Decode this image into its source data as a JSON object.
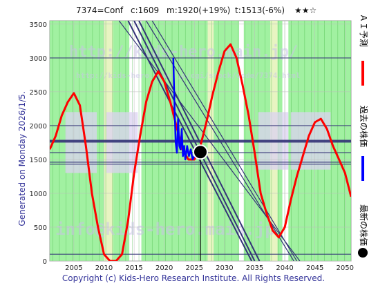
{
  "header": {
    "code": "7374=Conf",
    "current": "c:1609",
    "max": "m:1920(+19%)",
    "target": "t:1513(-6%)",
    "rating": "★★☆"
  },
  "generated_text": "Generated on Monday 2026/1/5.",
  "legend": {
    "prediction": "ＡＩ予測",
    "past_price": "過去の株価",
    "latest_price": "最新の株価"
  },
  "watermarks": {
    "main": "http://kids-hero.main.jp/",
    "sub": "http://kids-hero.main.jp/cgi/stock/code/7374.html",
    "mail": "info@kids-hero.main.jp"
  },
  "copyright": "Copyright (c) Kids-Hero Research Institute. All Rights Reserved.",
  "colors": {
    "prediction": "#ff0000",
    "past_price": "#0000ff",
    "latest_marker": "#000000",
    "green_band": "#90ee90",
    "purple_band": "#dcd2f2",
    "trend_line": "#333377",
    "legend_text": "#333399"
  },
  "chart_data": {
    "type": "line",
    "xlim": [
      2001,
      2051
    ],
    "ylim": [
      0,
      3550
    ],
    "x_ticks": [
      2005,
      2010,
      2015,
      2020,
      2025,
      2030,
      2035,
      2040,
      2045,
      2050
    ],
    "y_ticks": [
      0,
      500,
      1000,
      1500,
      2000,
      2500,
      3000,
      3500
    ],
    "series": [
      {
        "name": "ＡＩ予測",
        "color": "#ff0000",
        "x": [
          2001,
          2002,
          2003,
          2004,
          2005,
          2006,
          2007,
          2008,
          2009,
          2010,
          2011,
          2012,
          2013,
          2014,
          2015,
          2016,
          2017,
          2018,
          2019,
          2020,
          2021,
          2022,
          2023,
          2024,
          2025,
          2026,
          2027,
          2028,
          2029,
          2030,
          2031,
          2032,
          2033,
          2034,
          2035,
          2036,
          2037,
          2038,
          2039,
          2040,
          2041,
          2042,
          2043,
          2044,
          2045,
          2046,
          2047,
          2048,
          2049,
          2050,
          2051
        ],
        "values": [
          1650,
          1850,
          2150,
          2350,
          2480,
          2300,
          1700,
          1000,
          500,
          100,
          0,
          0,
          100,
          600,
          1300,
          1850,
          2350,
          2650,
          2800,
          2650,
          2350,
          2000,
          1650,
          1500,
          1500,
          1700,
          2050,
          2450,
          2800,
          3100,
          3200,
          3000,
          2600,
          2150,
          1600,
          1000,
          700,
          450,
          350,
          500,
          900,
          1250,
          1550,
          1850,
          2050,
          2100,
          1950,
          1700,
          1500,
          1300,
          950
        ]
      },
      {
        "name": "過去の株価",
        "color": "#0000ff",
        "x": [
          2021.5,
          2021.7,
          2021.9,
          2022.1,
          2022.3,
          2022.5,
          2022.7,
          2022.9,
          2023.1,
          2023.3,
          2023.5,
          2023.8,
          2024.1,
          2024.4,
          2024.7,
          2025.0,
          2025.3,
          2025.6,
          2026.0
        ],
        "values": [
          3000,
          2300,
          1750,
          1600,
          2100,
          1700,
          1650,
          1950,
          1550,
          1700,
          1500,
          1700,
          1550,
          1650,
          1500,
          1550,
          1600,
          1580,
          1609
        ]
      }
    ],
    "latest_point": {
      "x": 2026,
      "y": 1609
    },
    "horizontal_lines": [
      3000,
      2000,
      1780,
      1760,
      1600,
      1460,
      1430,
      100
    ],
    "trend_lines": [
      {
        "x1": 2014,
        "y1": 3550,
        "x2": 2034.5,
        "y2": 0
      },
      {
        "x1": 2015,
        "y1": 3550,
        "x2": 2035,
        "y2": 0
      },
      {
        "x1": 2015.8,
        "y1": 3550,
        "x2": 2035.8,
        "y2": 0
      },
      {
        "x1": 2017,
        "y1": 3550,
        "x2": 2041.5,
        "y2": 0
      },
      {
        "x1": 2018,
        "y1": 3550,
        "x2": 2042,
        "y2": 0
      },
      {
        "x1": 2012.5,
        "y1": 3550,
        "x2": 2042.5,
        "y2": 0
      }
    ],
    "grid": true
  }
}
